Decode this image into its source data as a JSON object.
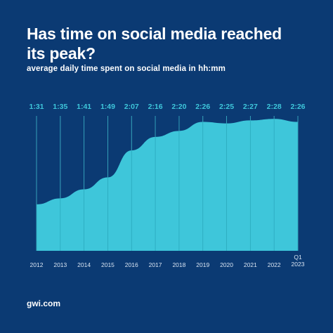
{
  "chart_data": {
    "type": "area",
    "title": "Has time on social media reached its peak?",
    "subtitle": "average daily time spent on social media in hh:mm",
    "categories": [
      "2012",
      "2013",
      "2014",
      "2015",
      "2016",
      "2017",
      "2018",
      "2019",
      "2020",
      "2021",
      "2022",
      "Q1 2023"
    ],
    "data_labels": [
      "1:31",
      "1:35",
      "1:41",
      "1:49",
      "2:07",
      "2:16",
      "2:20",
      "2:26",
      "2:25",
      "2:27",
      "2:28",
      "2:26"
    ],
    "values_minutes": [
      91,
      95,
      101,
      109,
      127,
      136,
      140,
      146,
      145,
      147,
      148,
      146
    ],
    "ylim": [
      0,
      150
    ],
    "grid": "vertical lines at categories",
    "colors": {
      "background": "#0b3a73",
      "area": "#3ec6da",
      "label": "#3ec6da",
      "grid": "#6f8fb8",
      "text": "#ffffff",
      "axis_text": "#d8e4f2"
    }
  },
  "footer": {
    "brand": "gwi.com"
  }
}
